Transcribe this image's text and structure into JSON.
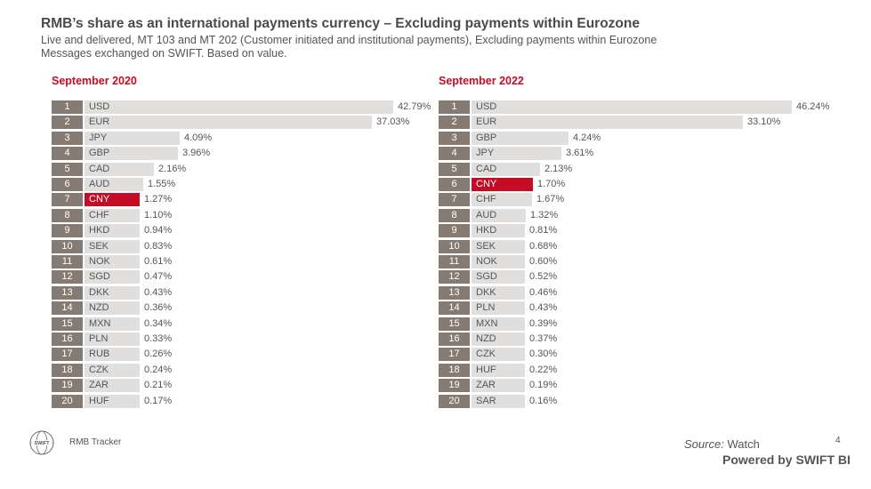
{
  "header": {
    "title": "RMB’s share as an international payments currency – Excluding payments within Eurozone",
    "subtitle1": "Live and delivered, MT 103 and MT 202 (Customer initiated and institutional payments), Excluding payments within Eurozone",
    "subtitle2": "Messages exchanged on SWIFT. Based on value."
  },
  "colors": {
    "highlight": "#c40c24",
    "bar": "#e1dfde",
    "rank_box": "#857b72"
  },
  "chart_data": [
    {
      "type": "bar",
      "title": "September 2020",
      "orientation": "horizontal",
      "unit": "%",
      "highlight": "CNY",
      "ranks": [
        1,
        2,
        3,
        4,
        5,
        6,
        7,
        8,
        9,
        10,
        11,
        12,
        13,
        14,
        15,
        16,
        17,
        18,
        19,
        20
      ],
      "categories": [
        "USD",
        "EUR",
        "JPY",
        "GBP",
        "CAD",
        "AUD",
        "CNY",
        "CHF",
        "HKD",
        "SEK",
        "NOK",
        "SGD",
        "DKK",
        "NZD",
        "MXN",
        "PLN",
        "RUB",
        "CZK",
        "ZAR",
        "HUF"
      ],
      "values": [
        42.79,
        37.03,
        4.09,
        3.96,
        2.16,
        1.55,
        1.27,
        1.1,
        0.94,
        0.83,
        0.61,
        0.47,
        0.43,
        0.36,
        0.34,
        0.33,
        0.26,
        0.24,
        0.21,
        0.17
      ],
      "labels": [
        "42.79%",
        "37.03%",
        "4.09%",
        "3.96%",
        "2.16%",
        "1.55%",
        "1.27%",
        "1.10%",
        "0.94%",
        "0.83%",
        "0.61%",
        "0.47%",
        "0.43%",
        "0.36%",
        "0.34%",
        "0.33%",
        "0.26%",
        "0.24%",
        "0.21%",
        "0.17%"
      ]
    },
    {
      "type": "bar",
      "title": "September 2022",
      "orientation": "horizontal",
      "unit": "%",
      "highlight": "CNY",
      "ranks": [
        1,
        2,
        3,
        4,
        5,
        6,
        7,
        8,
        9,
        10,
        11,
        12,
        13,
        14,
        15,
        16,
        17,
        18,
        19,
        20
      ],
      "categories": [
        "USD",
        "EUR",
        "GBP",
        "JPY",
        "CAD",
        "CNY",
        "CHF",
        "AUD",
        "HKD",
        "SEK",
        "NOK",
        "SGD",
        "DKK",
        "PLN",
        "MXN",
        "NZD",
        "CZK",
        "HUF",
        "ZAR",
        "SAR"
      ],
      "values": [
        46.24,
        33.1,
        4.24,
        3.61,
        2.13,
        1.7,
        1.67,
        1.32,
        0.81,
        0.68,
        0.6,
        0.52,
        0.46,
        0.43,
        0.39,
        0.37,
        0.3,
        0.22,
        0.19,
        0.16
      ],
      "labels": [
        "46.24%",
        "33.10%",
        "4.24%",
        "3.61%",
        "2.13%",
        "1.70%",
        "1.67%",
        "1.32%",
        "0.81%",
        "0.68%",
        "0.60%",
        "0.52%",
        "0.46%",
        "0.43%",
        "0.39%",
        "0.37%",
        "0.30%",
        "0.22%",
        "0.19%",
        "0.16%"
      ]
    }
  ],
  "footer": {
    "logo_text": "SWIFT",
    "label": "RMB Tracker",
    "page_number": "4",
    "source_prefix": "Source:",
    "source_value": "Watch",
    "powered": "Powered by SWIFT BI"
  }
}
